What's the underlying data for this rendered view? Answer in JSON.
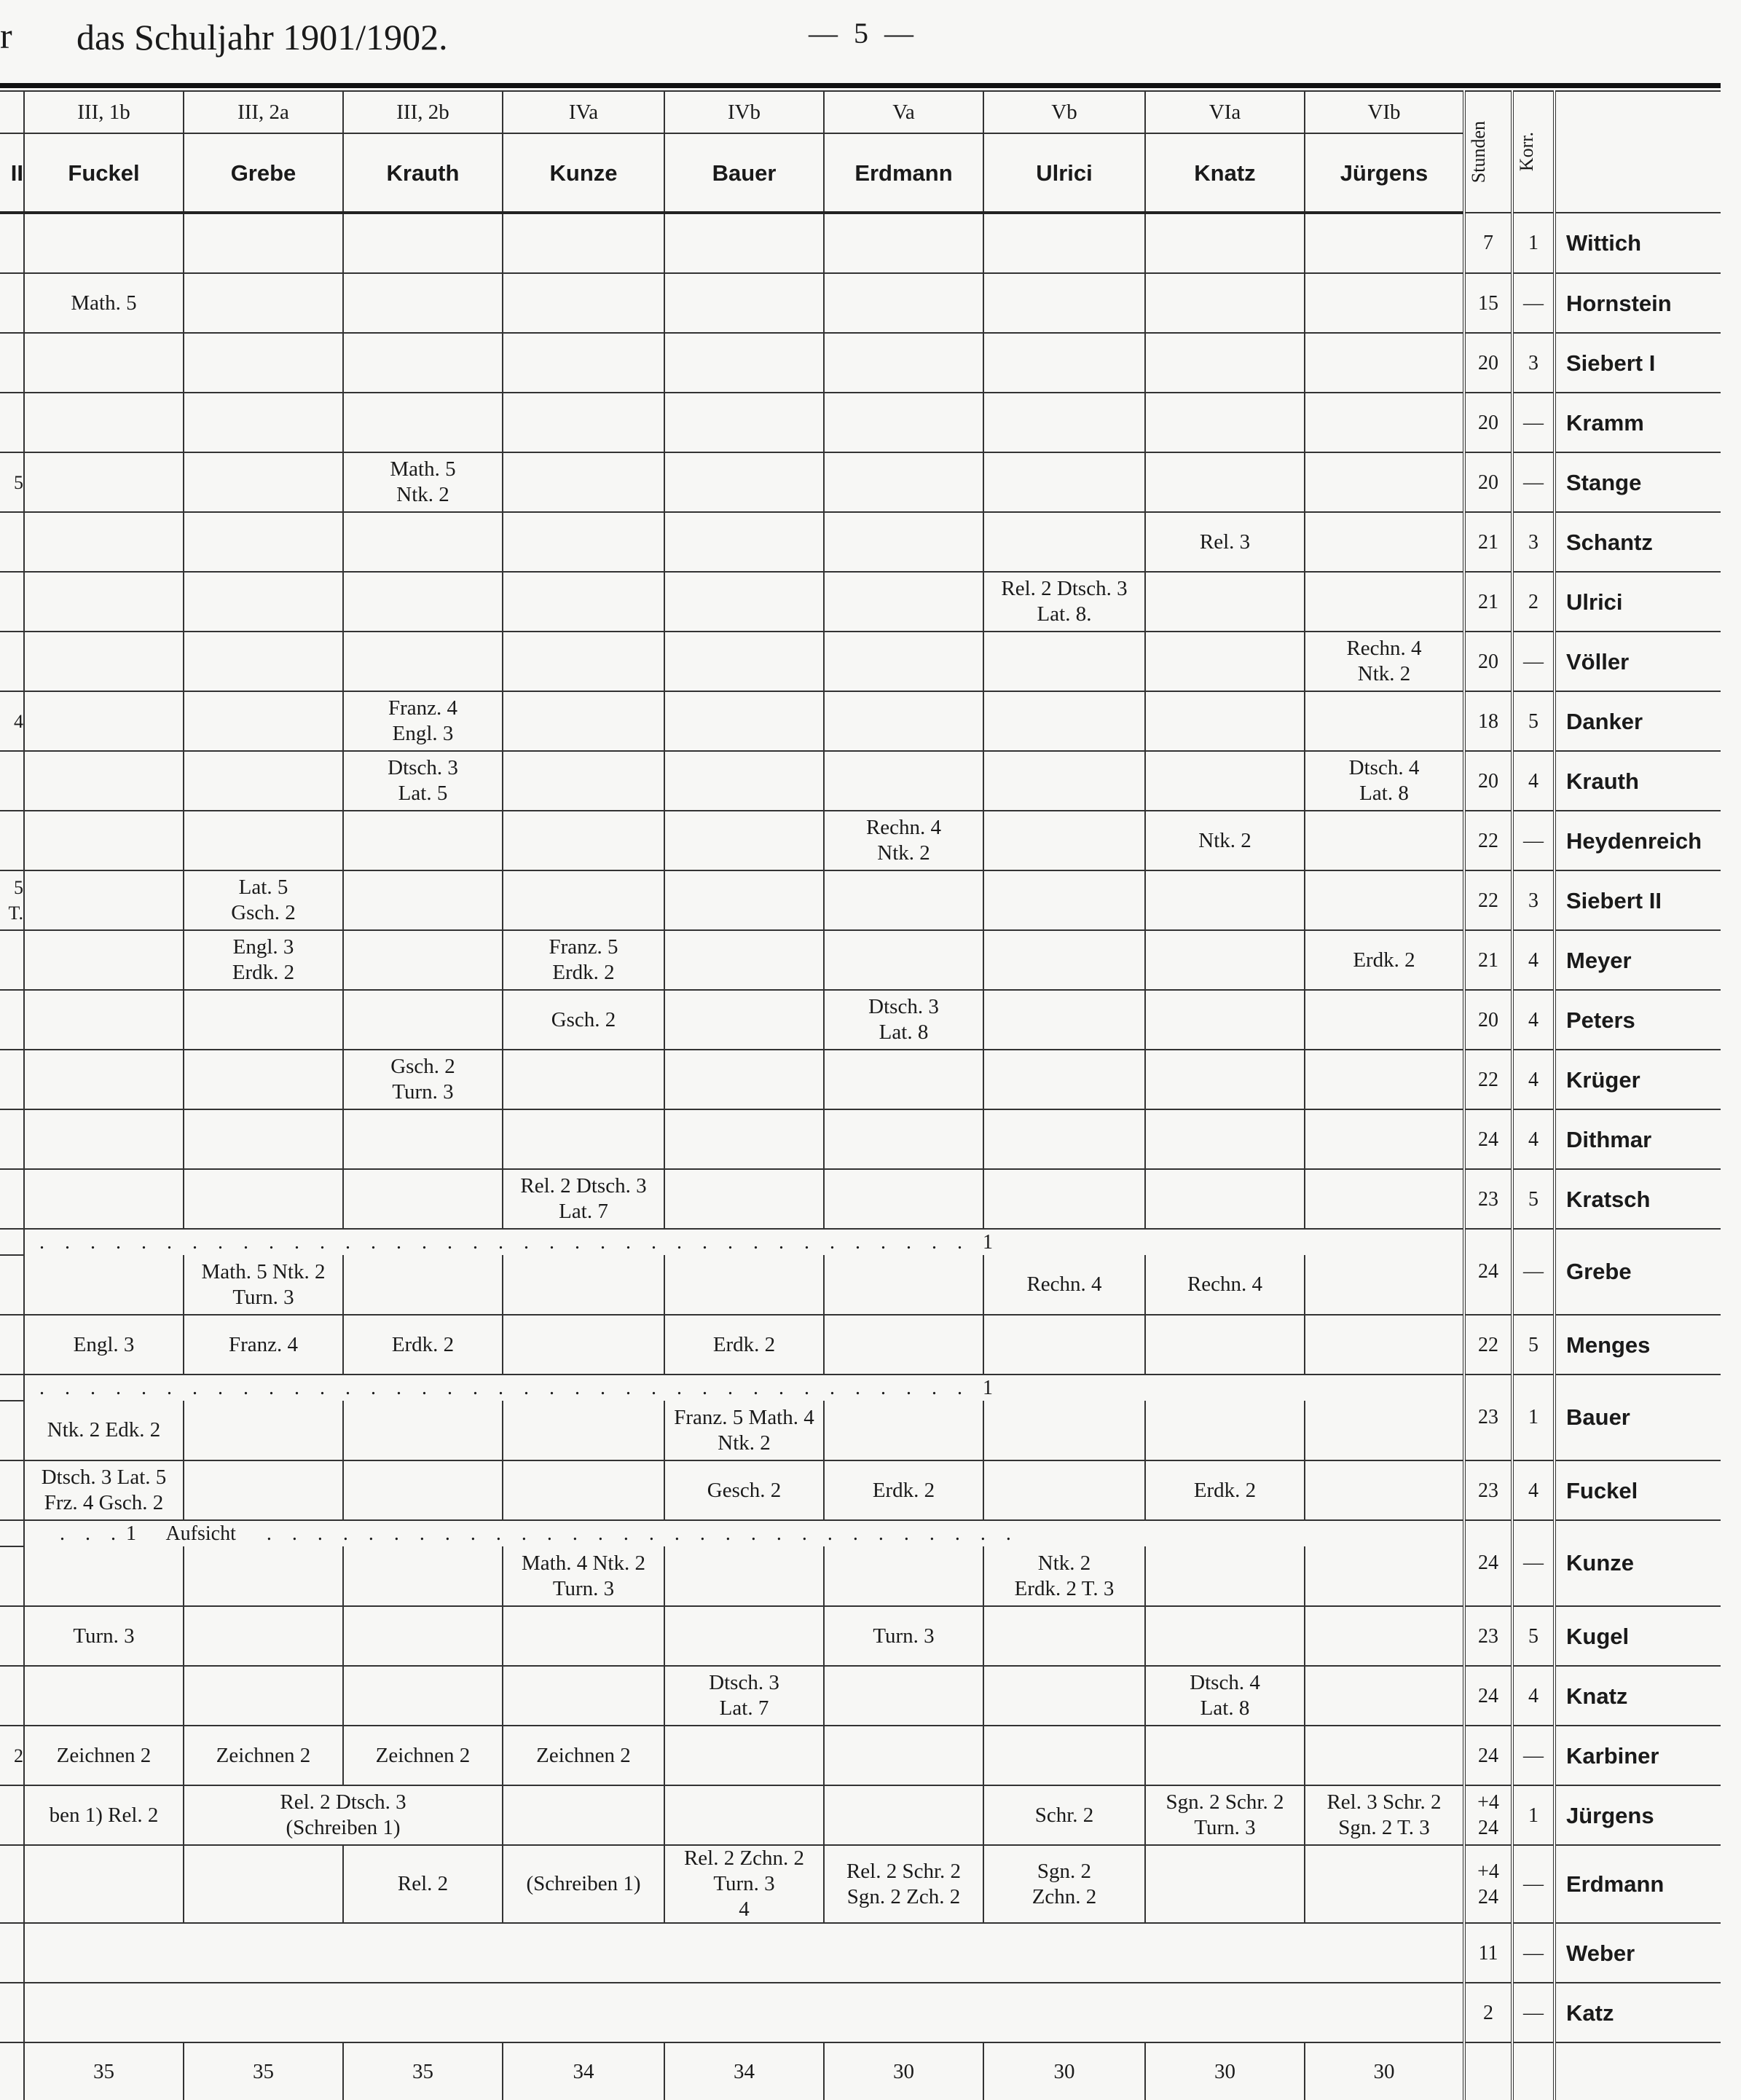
{
  "header": {
    "left_fragment": "r",
    "title": "das Schuljahr 1901/1902.",
    "page_number": "— 5 —"
  },
  "table": {
    "classes": [
      "III, 1b",
      "III, 2a",
      "III, 2b",
      "IVa",
      "IVb",
      "Va",
      "Vb",
      "VIa",
      "VIb"
    ],
    "class_teachers": [
      "Fuckel",
      "Grebe",
      "Krauth",
      "Kunze",
      "Bauer",
      "Erdmann",
      "Ulrici",
      "Knatz",
      "Jürgens"
    ],
    "left_header_fragment": "II",
    "stunden_label": "Stunden",
    "korr_label": "Korr.",
    "rows": [
      {
        "name": "Wittich",
        "stunden": "7",
        "korr": "1",
        "frag": "",
        "cells": [
          "",
          "",
          "",
          "",
          "",
          "",
          "",
          "",
          ""
        ]
      },
      {
        "name": "Hornstein",
        "stunden": "15",
        "korr": "—",
        "frag": "",
        "cells": [
          "Math. 5",
          "",
          "",
          "",
          "",
          "",
          "",
          "",
          ""
        ]
      },
      {
        "name": "Siebert I",
        "stunden": "20",
        "korr": "3",
        "frag": "",
        "cells": [
          "",
          "",
          "",
          "",
          "",
          "",
          "",
          "",
          ""
        ]
      },
      {
        "name": "Kramm",
        "stunden": "20",
        "korr": "—",
        "frag": "",
        "cells": [
          "",
          "",
          "",
          "",
          "",
          "",
          "",
          "",
          ""
        ]
      },
      {
        "name": "Stange",
        "stunden": "20",
        "korr": "—",
        "frag": "5",
        "cells": [
          "",
          "",
          "Math. 5\nNtk. 2",
          "",
          "",
          "",
          "",
          "",
          ""
        ]
      },
      {
        "name": "Schantz",
        "stunden": "21",
        "korr": "3",
        "frag": "",
        "cells": [
          "",
          "",
          "",
          "",
          "",
          "",
          "",
          "Rel. 3",
          ""
        ]
      },
      {
        "name": "Ulrici",
        "stunden": "21",
        "korr": "2",
        "frag": "",
        "cells": [
          "",
          "",
          "",
          "",
          "",
          "",
          "Rel. 2 Dtsch. 3\nLat. 8.",
          "",
          ""
        ]
      },
      {
        "name": "Völler",
        "stunden": "20",
        "korr": "—",
        "frag": "",
        "cells": [
          "",
          "",
          "",
          "",
          "",
          "",
          "",
          "",
          "Rechn. 4\nNtk. 2"
        ]
      },
      {
        "name": "Danker",
        "stunden": "18",
        "korr": "5",
        "frag": "4",
        "cells": [
          "",
          "",
          "Franz. 4\nEngl. 3",
          "",
          "",
          "",
          "",
          "",
          ""
        ]
      },
      {
        "name": "Krauth",
        "stunden": "20",
        "korr": "4",
        "frag": "",
        "cells": [
          "",
          "",
          "Dtsch. 3\nLat. 5",
          "",
          "",
          "",
          "",
          "",
          "Dtsch. 4\nLat. 8"
        ]
      },
      {
        "name": "Heydenreich",
        "stunden": "22",
        "korr": "—",
        "frag": "",
        "cells": [
          "",
          "",
          "",
          "",
          "",
          "Rechn. 4\nNtk. 2",
          "",
          "Ntk. 2",
          ""
        ]
      },
      {
        "name": "Siebert II",
        "stunden": "22",
        "korr": "3",
        "frag": "5\nT.",
        "cells": [
          "",
          "Lat. 5\nGsch. 2",
          "",
          "",
          "",
          "",
          "",
          "",
          ""
        ]
      },
      {
        "name": "Meyer",
        "stunden": "21",
        "korr": "4",
        "frag": "",
        "cells": [
          "",
          "Engl. 3\nErdk. 2",
          "",
          "Franz. 5\nErdk. 2",
          "",
          "",
          "",
          "",
          "Erdk. 2"
        ]
      },
      {
        "name": "Peters",
        "stunden": "20",
        "korr": "4",
        "frag": "",
        "cells": [
          "",
          "",
          "",
          "Gsch. 2",
          "",
          "Dtsch. 3\nLat. 8",
          "",
          "",
          ""
        ]
      },
      {
        "name": "Krüger",
        "stunden": "22",
        "korr": "4",
        "frag": "",
        "cells": [
          "",
          "",
          "Gsch. 2\nTurn. 3",
          "",
          "",
          "",
          "",
          "",
          ""
        ]
      },
      {
        "name": "Dithmar",
        "stunden": "24",
        "korr": "4",
        "frag": "",
        "cells": [
          "",
          "",
          "",
          "",
          "",
          "",
          "",
          "",
          ""
        ]
      },
      {
        "name": "Kratsch",
        "stunden": "23",
        "korr": "5",
        "frag": "",
        "cells": [
          "",
          "",
          "",
          "Rel. 2 Dtsch. 3\nLat. 7",
          "",
          "",
          "",
          "",
          ""
        ]
      },
      {
        "name": "Grebe",
        "stunden": "24",
        "korr": "—",
        "frag": "",
        "dots": ".    .    .    .    .    .    .    .    .    .    .    .    .    .    .    .    .    .    .    .    .    .    .    .    .    .    .    .    .    .    .    .    .    .    .    .    .    1",
        "cells": [
          "",
          "Math. 5 Ntk. 2\nTurn. 3",
          "",
          "",
          "",
          "",
          "Rechn. 4",
          "Rechn. 4",
          ""
        ]
      },
      {
        "name": "Menges",
        "stunden": "22",
        "korr": "5",
        "frag": "",
        "cells": [
          "Engl. 3",
          "Franz. 4",
          "Erdk. 2",
          "",
          "Erdk. 2",
          "",
          "",
          "",
          ""
        ]
      },
      {
        "name": "Bauer",
        "stunden": "23",
        "korr": "1",
        "frag": "",
        "dots": ".    .    .    .    .    .    .    .    .    .    .    .    .    .    .    .    .    .    .    .    .    .    .    .    .    .    .    .    .    .    .    .    .    .    .    .    .    1",
        "cells": [
          "Ntk. 2 Edk. 2",
          "",
          "",
          "",
          "Franz. 5 Math. 4\nNtk. 2",
          "",
          "",
          "",
          ""
        ]
      },
      {
        "name": "Fuckel",
        "stunden": "23",
        "korr": "4",
        "frag": "",
        "cells": [
          "Dtsch. 3 Lat. 5\nFrz. 4 Gsch. 2",
          "",
          "",
          "",
          "Gesch. 2",
          "Erdk. 2",
          "",
          "Erdk. 2",
          ""
        ]
      },
      {
        "name": "Kunze",
        "stunden": "24",
        "korr": "—",
        "frag": "",
        "dots": "    .    .    .  1      Aufsicht      .    .    .    .    .    .    .    .    .    .    .    .    .    .    .    .    .    .    .    .    .    .    .    .    .    .    .    .    .    .",
        "cells": [
          "",
          "",
          "",
          "Math. 4 Ntk. 2\nTurn. 3",
          "",
          "",
          "Ntk. 2\nErdk. 2  T. 3",
          "",
          ""
        ]
      },
      {
        "name": "Kugel",
        "stunden": "23",
        "korr": "5",
        "frag": "",
        "cells": [
          "Turn. 3",
          "",
          "",
          "",
          "",
          "Turn. 3",
          "",
          "",
          ""
        ]
      },
      {
        "name": "Knatz",
        "stunden": "24",
        "korr": "4",
        "frag": "",
        "cells": [
          "",
          "",
          "",
          "",
          "Dtsch. 3\nLat. 7",
          "",
          "",
          "Dtsch. 4\nLat. 8",
          ""
        ]
      },
      {
        "name": "Karbiner",
        "stunden": "24",
        "korr": "—",
        "frag": "2",
        "cells": [
          "Zeichnen 2",
          "Zeichnen 2",
          "Zeichnen 2",
          "Zeichnen 2",
          "",
          "",
          "",
          "",
          ""
        ]
      },
      {
        "name": "Jürgens",
        "stunden": "+4\n24",
        "korr": "1",
        "frag": "",
        "span_col": 1,
        "cells": [
          "ben 1) Rel. 2",
          "Rel. 2 Dtsch. 3\n(Schreiben 1)",
          null,
          "",
          "",
          "",
          "Schr. 2",
          "Sgn. 2 Schr. 2\nTurn. 3",
          "Rel. 3 Schr. 2\nSgn. 2  T. 3"
        ]
      },
      {
        "name": "Erdmann",
        "stunden": "+4\n24",
        "korr": "—",
        "frag": "",
        "cells": [
          "",
          "",
          "Rel. 2",
          "(Schreiben 1)",
          "Rel. 2 Zchn. 2\nTurn. 3\n4",
          "Rel. 2 Schr. 2\nSgn. 2 Zch. 2",
          "Sgn. 2\nZchn. 2",
          "",
          ""
        ]
      },
      {
        "name": "Weber",
        "stunden": "11",
        "korr": "—",
        "frag": "",
        "novert": true,
        "cells": [
          "",
          "",
          "",
          "",
          "",
          "",
          "",
          "",
          ""
        ]
      },
      {
        "name": "Katz",
        "stunden": "2",
        "korr": "—",
        "frag": "",
        "novert": true,
        "cells": [
          "",
          "",
          "",
          "",
          "",
          "",
          "",
          "",
          ""
        ]
      }
    ],
    "totals": [
      "35",
      "35",
      "35",
      "34",
      "34",
      "30",
      "30",
      "30",
      "30"
    ]
  }
}
